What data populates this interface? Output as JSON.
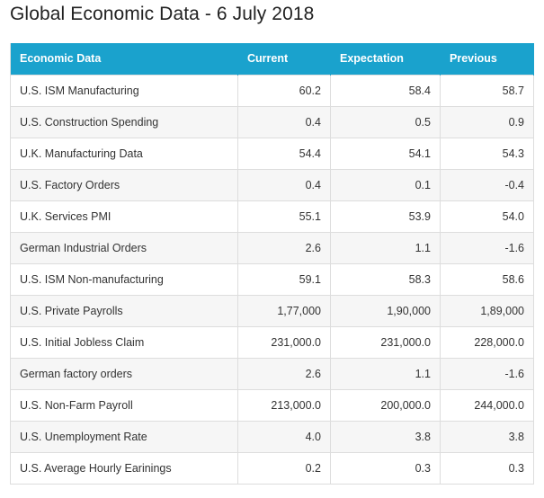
{
  "page": {
    "title": "Global Economic Data - 6 July 2018"
  },
  "table": {
    "headers": [
      "Economic Data",
      "Current",
      "Expectation",
      "Previous"
    ],
    "rows": [
      [
        "U.S. ISM Manufacturing",
        "60.2",
        "58.4",
        "58.7"
      ],
      [
        "U.S. Construction Spending",
        "0.4",
        "0.5",
        "0.9"
      ],
      [
        "U.K. Manufacturing Data",
        "54.4",
        "54.1",
        "54.3"
      ],
      [
        "U.S. Factory Orders",
        "0.4",
        "0.1",
        "-0.4"
      ],
      [
        "U.K. Services PMI",
        "55.1",
        "53.9",
        "54.0"
      ],
      [
        "German Industrial Orders",
        "2.6",
        "1.1",
        "-1.6"
      ],
      [
        "U.S. ISM Non-manufacturing",
        "59.1",
        "58.3",
        "58.6"
      ],
      [
        "U.S. Private Payrolls",
        "1,77,000",
        "1,90,000",
        "1,89,000"
      ],
      [
        "U.S. Initial Jobless Claim",
        "231,000.0",
        "231,000.0",
        "228,000.0"
      ],
      [
        "German factory orders",
        "2.6",
        "1.1",
        "-1.6"
      ],
      [
        "U.S. Non-Farm Payroll",
        "213,000.0",
        "200,000.0",
        "244,000.0"
      ],
      [
        "U.S. Unemployment Rate",
        "4.0",
        "3.8",
        "3.8"
      ],
      [
        "U.S. Average Hourly Earinings",
        "0.2",
        "0.3",
        "0.3"
      ]
    ]
  },
  "colors": {
    "header_bg": "#1aa2cd",
    "header_text": "#ffffff",
    "row_alt_bg": "#f6f6f6",
    "border": "#dddddd"
  }
}
